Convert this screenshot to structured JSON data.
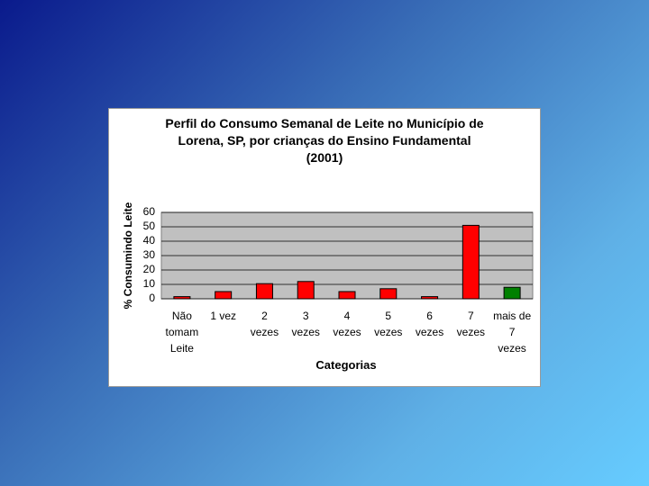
{
  "chart_data": {
    "type": "bar",
    "title": "Perfil do Consumo Semanal de Leite no Município de\nLorena, SP, por crianças do Ensino Fundamental\n(2001)",
    "x_label": "Categorias",
    "y_label": "% Consumindo Leite",
    "categories": [
      "Não\ntomam\nLeite",
      "1 vez",
      "2\nvezes",
      "3\nvezes",
      "4\nvezes",
      "5\nvezes",
      "6\nvezes",
      "7\nvezes",
      "mais de\n7\nvezes"
    ],
    "values": [
      1.5,
      5,
      10.5,
      12,
      5,
      7,
      1.5,
      51,
      8
    ],
    "colors": [
      "#ff0000",
      "#ff0000",
      "#ff0000",
      "#ff0000",
      "#ff0000",
      "#ff0000",
      "#ff0000",
      "#ff0000",
      "#008000"
    ],
    "ylim": [
      0,
      60
    ],
    "yticks": [
      0,
      10,
      20,
      30,
      40,
      50,
      60
    ],
    "grid": true
  }
}
